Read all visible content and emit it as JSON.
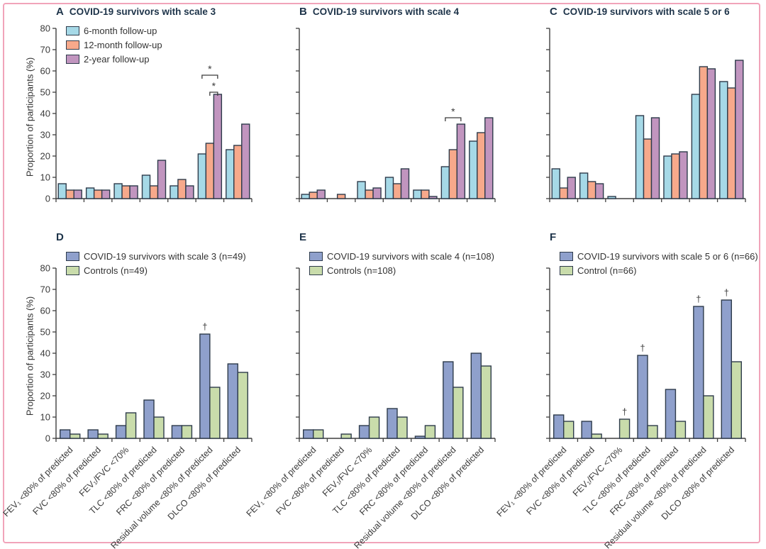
{
  "figure": {
    "border_color": "#f1a4ba",
    "background": "#ffffff"
  },
  "palette": {
    "six_month": "#a6d9e7",
    "twelve_month": "#f7a98b",
    "two_year": "#c195bf",
    "survivor_blue": "#8fa0cc",
    "control_green": "#c9dcab",
    "bar_stroke": "#2e3b4b",
    "axis": "#3f3f3f",
    "title_text": "#1d3349",
    "label_text": "#3a3a3a"
  },
  "axis": {
    "ylabel": "Proportion of participants (%)",
    "ymin": 0,
    "ymax": 80,
    "ytick_step": 10
  },
  "annotation_symbols": {
    "significance": "*",
    "dagger": "†"
  },
  "categories": [
    "FEV₁ <80% of predicted",
    "FVC <80% of predicted",
    "FEV₁/FVC <70%",
    "TLC <80% of predicted",
    "FRC <80% of predicted",
    "Residual volume <80% of predicted",
    "DLCO <80% of predicted"
  ],
  "chart_data": [
    {
      "id": "A",
      "type": "bar",
      "panel_letter": "A",
      "title": "COVID-19 survivors with scale 3",
      "ylabel": "Proportion of participants (%)",
      "ylim": [
        0,
        80
      ],
      "yticks": [
        0,
        10,
        20,
        30,
        40,
        50,
        60,
        70,
        80
      ],
      "grid": {
        "row": "top",
        "col": 1
      },
      "legend_visible": true,
      "categories": [
        "FEV₁ <80% of predicted",
        "FVC <80% of predicted",
        "FEV₁/FVC <70%",
        "TLC <80% of predicted",
        "FRC <80% of predicted",
        "Residual volume <80% of predicted",
        "DLCO <80% of predicted"
      ],
      "series": [
        {
          "name": "6-month follow-up",
          "color_key": "six_month",
          "values": [
            7,
            5,
            7,
            11,
            6,
            21,
            23
          ]
        },
        {
          "name": "12-month follow-up",
          "color_key": "twelve_month",
          "values": [
            4,
            4,
            6,
            6,
            9,
            26,
            25
          ]
        },
        {
          "name": "2-year follow-up",
          "color_key": "two_year",
          "values": [
            4,
            4,
            6,
            18,
            6,
            49,
            35
          ]
        }
      ],
      "brackets": [
        {
          "group": 5,
          "from_series": 0,
          "to_series": 2,
          "level": 58,
          "label": "*"
        },
        {
          "group": 5,
          "from_series": 1,
          "to_series": 2,
          "level": 50,
          "label": "*"
        }
      ],
      "daggers": []
    },
    {
      "id": "B",
      "type": "bar",
      "panel_letter": "B",
      "title": "COVID-19 survivors with scale 4",
      "ylabel": "",
      "ylim": [
        0,
        80
      ],
      "yticks": [
        0,
        10,
        20,
        30,
        40,
        50,
        60,
        70,
        80
      ],
      "grid": {
        "row": "top",
        "col": 2
      },
      "legend_visible": false,
      "categories": [
        "FEV₁ <80% of predicted",
        "FVC <80% of predicted",
        "FEV₁/FVC <70%",
        "TLC <80% of predicted",
        "FRC <80% of predicted",
        "Residual volume <80% of predicted",
        "DLCO <80% of predicted"
      ],
      "series": [
        {
          "name": "6-month follow-up",
          "color_key": "six_month",
          "values": [
            2,
            0,
            8,
            10,
            4,
            15,
            27
          ]
        },
        {
          "name": "12-month follow-up",
          "color_key": "twelve_month",
          "values": [
            3,
            2,
            4,
            7,
            4,
            23,
            31
          ]
        },
        {
          "name": "2-year follow-up",
          "color_key": "two_year",
          "values": [
            4,
            0,
            5,
            14,
            1,
            35,
            38
          ]
        }
      ],
      "brackets": [
        {
          "group": 5,
          "from_series": 0,
          "to_series": 2,
          "level": 38,
          "label": "*"
        }
      ],
      "daggers": []
    },
    {
      "id": "C",
      "type": "bar",
      "panel_letter": "C",
      "title": "COVID-19 survivors with scale 5 or 6",
      "ylabel": "",
      "ylim": [
        0,
        80
      ],
      "yticks": [
        0,
        10,
        20,
        30,
        40,
        50,
        60,
        70,
        80
      ],
      "grid": {
        "row": "top",
        "col": 3
      },
      "legend_visible": false,
      "categories": [
        "FEV₁ <80% of predicted",
        "FVC <80% of predicted",
        "FEV₁/FVC <70%",
        "TLC <80% of predicted",
        "FRC <80% of predicted",
        "Residual volume <80% of predicted",
        "DLCO <80% of predicted"
      ],
      "series": [
        {
          "name": "6-month follow-up",
          "color_key": "six_month",
          "values": [
            14,
            12,
            1,
            39,
            20,
            49,
            55
          ]
        },
        {
          "name": "12-month follow-up",
          "color_key": "twelve_month",
          "values": [
            5,
            8,
            0,
            28,
            21,
            62,
            52
          ]
        },
        {
          "name": "2-year follow-up",
          "color_key": "two_year",
          "values": [
            10,
            7,
            0,
            38,
            22,
            61,
            65
          ]
        }
      ],
      "brackets": [],
      "daggers": []
    },
    {
      "id": "D",
      "type": "bar",
      "panel_letter": "D",
      "title": "",
      "ylabel": "Proportion of participants (%)",
      "ylim": [
        0,
        80
      ],
      "yticks": [
        0,
        10,
        20,
        30,
        40,
        50,
        60,
        70,
        80
      ],
      "grid": {
        "row": "bottom",
        "col": 1
      },
      "legend_visible": true,
      "categories": [
        "FEV₁ <80% of predicted",
        "FVC <80% of predicted",
        "FEV₁/FVC <70%",
        "TLC <80% of predicted",
        "FRC <80% of predicted",
        "Residual volume <80% of predicted",
        "DLCO <80% of predicted"
      ],
      "series": [
        {
          "name": "COVID-19 survivors with scale 3 (n=49)",
          "color_key": "survivor_blue",
          "values": [
            4,
            4,
            6,
            18,
            6,
            49,
            35
          ]
        },
        {
          "name": "Controls (n=49)",
          "color_key": "control_green",
          "values": [
            2,
            2,
            12,
            10,
            6,
            24,
            31
          ]
        }
      ],
      "brackets": [],
      "daggers": [
        {
          "group": 5,
          "series": 0,
          "label": "†"
        }
      ]
    },
    {
      "id": "E",
      "type": "bar",
      "panel_letter": "E",
      "title": "",
      "ylabel": "",
      "ylim": [
        0,
        80
      ],
      "yticks": [
        0,
        10,
        20,
        30,
        40,
        50,
        60,
        70,
        80
      ],
      "grid": {
        "row": "bottom",
        "col": 2
      },
      "legend_visible": true,
      "categories": [
        "FEV₁ <80% of predicted",
        "FVC <80% of predicted",
        "FEV₁/FVC <70%",
        "TLC <80% of predicted",
        "FRC <80% of predicted",
        "Residual volume <80% of predicted",
        "DLCO <80% of predicted"
      ],
      "series": [
        {
          "name": "COVID-19 survivors with scale 4 (n=108)",
          "color_key": "survivor_blue",
          "values": [
            4,
            0,
            6,
            14,
            1,
            36,
            40
          ]
        },
        {
          "name": "Controls (n=108)",
          "color_key": "control_green",
          "values": [
            4,
            2,
            10,
            10,
            6,
            24,
            34
          ]
        }
      ],
      "brackets": [],
      "daggers": []
    },
    {
      "id": "F",
      "type": "bar",
      "panel_letter": "F",
      "title": "",
      "ylabel": "",
      "ylim": [
        0,
        80
      ],
      "yticks": [
        0,
        10,
        20,
        30,
        40,
        50,
        60,
        70,
        80
      ],
      "grid": {
        "row": "bottom",
        "col": 3
      },
      "legend_visible": true,
      "categories": [
        "FEV₁ <80% of predicted",
        "FVC <80% of predicted",
        "FEV₁/FVC <70%",
        "TLC <80% of predicted",
        "FRC <80% of predicted",
        "Residual volume <80% of predicted",
        "DLCO <80% of predicted"
      ],
      "series": [
        {
          "name": "COVID-19 survivors with scale 5 or 6 (n=66)",
          "color_key": "survivor_blue",
          "values": [
            11,
            8,
            0,
            39,
            23,
            62,
            65
          ]
        },
        {
          "name": "Control (n=66)",
          "color_key": "control_green",
          "values": [
            8,
            2,
            9,
            6,
            8,
            20,
            36
          ]
        }
      ],
      "brackets": [],
      "daggers": [
        {
          "group": 2,
          "series": 1,
          "label": "†"
        },
        {
          "group": 3,
          "series": 0,
          "label": "†"
        },
        {
          "group": 5,
          "series": 0,
          "label": "†"
        },
        {
          "group": 6,
          "series": 0,
          "label": "†"
        }
      ]
    }
  ]
}
